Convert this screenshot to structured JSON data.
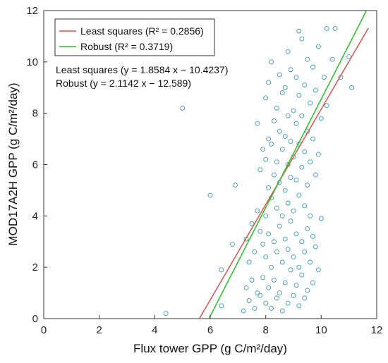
{
  "chart_data": {
    "type": "scatter",
    "xlabel": "Flux tower GPP (g C/m²/day)",
    "ylabel": "MOD17A2H GPP (g C/m²/day)",
    "xlim": [
      0,
      12
    ],
    "ylim": [
      0,
      12
    ],
    "xticks": [
      "0",
      "2",
      "4",
      "6",
      "8",
      "10",
      "12"
    ],
    "yticks": [
      "0",
      "2",
      "4",
      "6",
      "8",
      "10",
      "12"
    ],
    "grid": false,
    "legend_position": "top-left",
    "colors": {
      "points": "#3b9ab2",
      "least_squares": "#d9534f",
      "robust": "#22c422"
    },
    "legend": [
      {
        "label": "Least squares (R² = 0.2856)",
        "color": "#d9534f"
      },
      {
        "label": "Robust (R² = 0.3719)",
        "color": "#22c422"
      }
    ],
    "annotations": [
      "Least squares (y = 1.8584 x − 10.4237)",
      "Robust (y = 2.1142 x − 12.589)"
    ],
    "lines": [
      {
        "name": "Least squares",
        "slope": 1.8584,
        "intercept": -10.4237,
        "x_range": [
          5.61,
          11.7
        ]
      },
      {
        "name": "Robust",
        "slope": 2.1142,
        "intercept": -12.589,
        "x_range": [
          5.95,
          11.63
        ]
      }
    ],
    "points": [
      [
        4.4,
        0.2
      ],
      [
        5.0,
        8.2
      ],
      [
        6.0,
        4.8
      ],
      [
        6.4,
        0.5
      ],
      [
        6.4,
        1.9
      ],
      [
        6.8,
        2.9
      ],
      [
        6.9,
        5.2
      ],
      [
        7.2,
        0.3
      ],
      [
        7.3,
        1.2
      ],
      [
        7.3,
        3.1
      ],
      [
        7.4,
        0.7
      ],
      [
        7.4,
        2.2
      ],
      [
        7.5,
        1.5
      ],
      [
        7.5,
        3.7
      ],
      [
        7.6,
        0.4
      ],
      [
        7.6,
        2.6
      ],
      [
        7.7,
        1.0
      ],
      [
        7.7,
        4.2
      ],
      [
        7.7,
        7.6
      ],
      [
        7.8,
        0.9
      ],
      [
        7.8,
        3.4
      ],
      [
        7.8,
        5.8
      ],
      [
        7.9,
        1.6
      ],
      [
        7.9,
        2.9
      ],
      [
        7.9,
        6.6
      ],
      [
        8.0,
        0.6
      ],
      [
        8.0,
        2.4
      ],
      [
        8.0,
        4.0
      ],
      [
        8.0,
        6.2
      ],
      [
        8.0,
        8.6
      ],
      [
        8.1,
        1.2
      ],
      [
        8.1,
        3.3
      ],
      [
        8.1,
        5.1
      ],
      [
        8.1,
        7.0
      ],
      [
        8.1,
        9.2
      ],
      [
        8.2,
        0.4
      ],
      [
        8.2,
        2.0
      ],
      [
        8.2,
        4.7
      ],
      [
        8.2,
        6.8
      ],
      [
        8.2,
        10.0
      ],
      [
        8.3,
        1.5
      ],
      [
        8.3,
        3.0
      ],
      [
        8.3,
        5.6
      ],
      [
        8.3,
        7.7
      ],
      [
        8.4,
        0.8
      ],
      [
        8.4,
        2.6
      ],
      [
        8.4,
        4.3
      ],
      [
        8.4,
        6.1
      ],
      [
        8.4,
        8.2
      ],
      [
        8.5,
        1.0
      ],
      [
        8.5,
        3.6
      ],
      [
        8.5,
        5.3
      ],
      [
        8.5,
        7.3
      ],
      [
        8.5,
        9.5
      ],
      [
        8.6,
        0.3
      ],
      [
        8.6,
        2.2
      ],
      [
        8.6,
        4.0
      ],
      [
        8.6,
        6.6
      ],
      [
        8.6,
        8.8
      ],
      [
        8.7,
        1.4
      ],
      [
        8.7,
        3.1
      ],
      [
        8.7,
        5.0
      ],
      [
        8.7,
        7.1
      ],
      [
        8.7,
        9.0
      ],
      [
        8.8,
        0.6
      ],
      [
        8.8,
        2.7
      ],
      [
        8.8,
        4.5
      ],
      [
        8.8,
        6.0
      ],
      [
        8.8,
        7.9
      ],
      [
        8.8,
        10.4
      ],
      [
        8.9,
        1.9
      ],
      [
        8.9,
        3.8
      ],
      [
        8.9,
        5.5
      ],
      [
        8.9,
        6.9
      ],
      [
        8.9,
        9.7
      ],
      [
        9.0,
        0.9
      ],
      [
        9.0,
        2.4
      ],
      [
        9.0,
        4.2
      ],
      [
        9.0,
        6.3
      ],
      [
        9.0,
        8.1
      ],
      [
        9.1,
        1.3
      ],
      [
        9.1,
        3.3
      ],
      [
        9.1,
        5.4
      ],
      [
        9.1,
        7.6
      ],
      [
        9.1,
        9.4
      ],
      [
        9.2,
        0.5
      ],
      [
        9.2,
        2.0
      ],
      [
        9.2,
        4.8
      ],
      [
        9.2,
        6.8
      ],
      [
        9.2,
        8.7
      ],
      [
        9.3,
        1.7
      ],
      [
        9.3,
        3.0
      ],
      [
        9.3,
        5.9
      ],
      [
        9.3,
        7.9
      ],
      [
        9.3,
        10.9
      ],
      [
        9.4,
        0.8
      ],
      [
        9.4,
        2.6
      ],
      [
        9.4,
        4.4
      ],
      [
        9.4,
        6.5
      ],
      [
        9.4,
        9.1
      ],
      [
        9.5,
        1.1
      ],
      [
        9.5,
        3.5
      ],
      [
        9.5,
        5.2
      ],
      [
        9.5,
        7.3
      ],
      [
        9.5,
        10.1
      ],
      [
        9.6,
        2.2
      ],
      [
        9.6,
        4.0
      ],
      [
        9.6,
        6.1
      ],
      [
        9.6,
        8.4
      ],
      [
        9.7,
        1.4
      ],
      [
        9.7,
        3.2
      ],
      [
        9.7,
        7.0
      ],
      [
        9.7,
        9.8
      ],
      [
        9.8,
        2.8
      ],
      [
        9.8,
        5.6
      ],
      [
        9.8,
        8.9
      ],
      [
        9.9,
        1.9
      ],
      [
        9.9,
        6.4
      ],
      [
        9.9,
        10.6
      ],
      [
        10.0,
        3.9
      ],
      [
        10.0,
        7.8
      ],
      [
        10.1,
        9.4
      ],
      [
        10.2,
        8.3
      ],
      [
        10.2,
        11.3
      ],
      [
        10.4,
        10.1
      ],
      [
        10.5,
        11.3
      ],
      [
        10.7,
        9.4
      ],
      [
        11.1,
        9.0
      ],
      [
        11.0,
        10.2
      ],
      [
        9.2,
        11.2
      ]
    ]
  }
}
